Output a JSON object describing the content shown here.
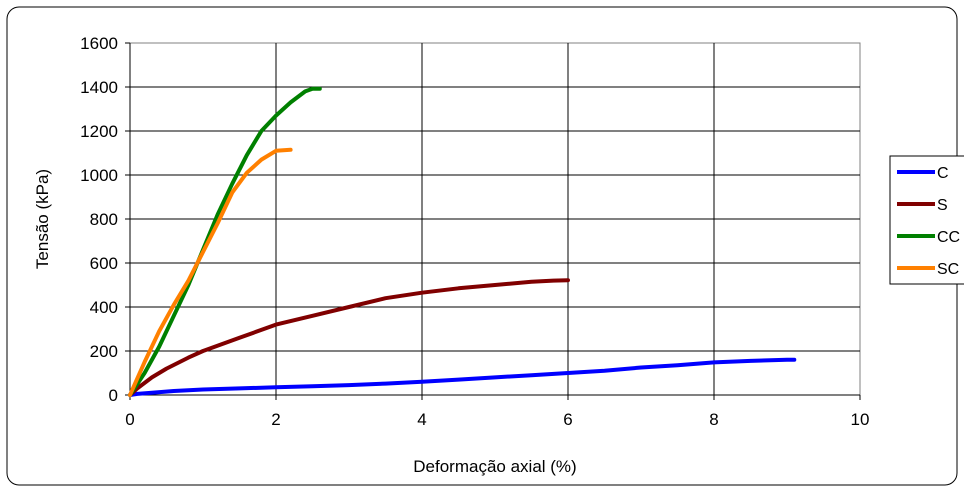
{
  "chart_data": {
    "type": "line",
    "title": "",
    "xlabel": "Deformação axial (%)",
    "ylabel": "Tensão (kPa)",
    "xlim": [
      0,
      10
    ],
    "ylim": [
      0,
      1600
    ],
    "xticks": [
      0,
      2,
      4,
      6,
      8,
      10
    ],
    "yticks": [
      0,
      200,
      400,
      600,
      800,
      1000,
      1200,
      1400,
      1600
    ],
    "grid": true,
    "legend_position": "right",
    "series": [
      {
        "name": "C",
        "color": "#0000ff",
        "points": [
          [
            0,
            0
          ],
          [
            0.1,
            5
          ],
          [
            0.3,
            10
          ],
          [
            0.6,
            18
          ],
          [
            1.0,
            25
          ],
          [
            1.5,
            30
          ],
          [
            2.0,
            35
          ],
          [
            2.5,
            40
          ],
          [
            3.0,
            45
          ],
          [
            3.5,
            52
          ],
          [
            4.0,
            60
          ],
          [
            4.5,
            70
          ],
          [
            5.0,
            80
          ],
          [
            5.5,
            90
          ],
          [
            6.0,
            100
          ],
          [
            6.5,
            110
          ],
          [
            7.0,
            125
          ],
          [
            7.5,
            135
          ],
          [
            8.0,
            148
          ],
          [
            8.5,
            155
          ],
          [
            9.0,
            160
          ],
          [
            9.1,
            160
          ]
        ]
      },
      {
        "name": "S",
        "color": "#800000",
        "points": [
          [
            0,
            0
          ],
          [
            0.1,
            30
          ],
          [
            0.3,
            80
          ],
          [
            0.5,
            120
          ],
          [
            0.8,
            170
          ],
          [
            1.0,
            200
          ],
          [
            1.5,
            260
          ],
          [
            2.0,
            320
          ],
          [
            2.5,
            360
          ],
          [
            3.0,
            400
          ],
          [
            3.5,
            440
          ],
          [
            4.0,
            465
          ],
          [
            4.5,
            485
          ],
          [
            5.0,
            500
          ],
          [
            5.5,
            515
          ],
          [
            5.8,
            520
          ],
          [
            6.0,
            522
          ]
        ]
      },
      {
        "name": "CC",
        "color": "#008000",
        "points": [
          [
            0,
            0
          ],
          [
            0.2,
            100
          ],
          [
            0.4,
            220
          ],
          [
            0.6,
            360
          ],
          [
            0.8,
            500
          ],
          [
            1.0,
            660
          ],
          [
            1.2,
            820
          ],
          [
            1.4,
            960
          ],
          [
            1.6,
            1090
          ],
          [
            1.8,
            1200
          ],
          [
            2.0,
            1270
          ],
          [
            2.2,
            1330
          ],
          [
            2.4,
            1380
          ],
          [
            2.5,
            1392
          ],
          [
            2.6,
            1392
          ]
        ]
      },
      {
        "name": "SC",
        "color": "#ff8000",
        "points": [
          [
            0,
            0
          ],
          [
            0.2,
            150
          ],
          [
            0.4,
            290
          ],
          [
            0.6,
            410
          ],
          [
            0.8,
            520
          ],
          [
            1.0,
            650
          ],
          [
            1.2,
            780
          ],
          [
            1.4,
            920
          ],
          [
            1.6,
            1010
          ],
          [
            1.8,
            1070
          ],
          [
            2.0,
            1110
          ],
          [
            2.2,
            1115
          ]
        ]
      }
    ]
  }
}
